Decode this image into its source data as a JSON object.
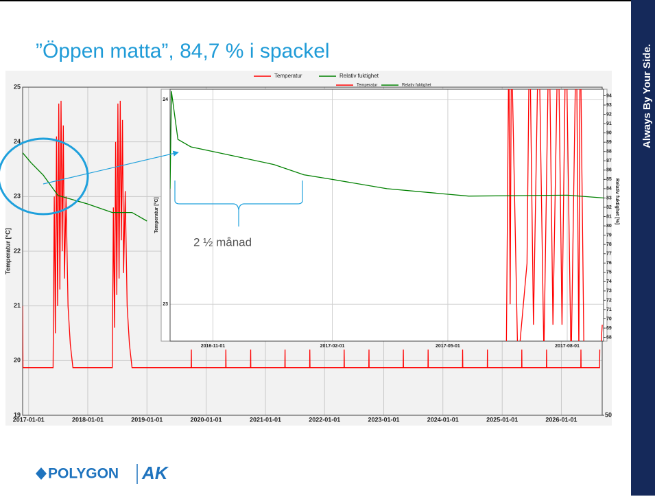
{
  "title": "”Öppen matta”, 84,7 % i spackel",
  "annotation": "2 ½ månad",
  "side_text": "Always By Your Side.",
  "logo": {
    "brand": "POLYGON",
    "partner": "AK"
  },
  "chart_data": [
    {
      "type": "line",
      "ylabel": "Temperatur [°C]",
      "xlim": [
        "2016-11-25",
        "2026-09-10"
      ],
      "xticks": [
        "2017-01-01",
        "2018-01-01",
        "2019-01-01",
        "2020-01-01",
        "2021-01-01",
        "2022-01-01",
        "2023-01-01",
        "2024-01-01",
        "2025-01-01",
        "2026-01-01"
      ],
      "ylim": [
        19,
        25
      ],
      "yticks": [
        19,
        20,
        21,
        22,
        23,
        24,
        25
      ],
      "y2lim": [
        50,
        100
      ],
      "y2ticks": [
        50
      ],
      "grid": true,
      "series": [
        {
          "name": "Temperatur",
          "color": "#ff0000",
          "x": [
            "2016-11-25",
            "2016-11-27",
            "2017-06-01",
            "2017-06-08",
            "2017-06-15",
            "2017-06-22",
            "2017-06-29",
            "2017-07-06",
            "2017-07-13",
            "2017-07-20",
            "2017-07-27",
            "2017-08-03",
            "2017-08-10",
            "2017-08-20",
            "2017-09-01",
            "2017-09-15",
            "2017-10-01",
            "2018-06-01",
            "2018-06-08",
            "2018-06-15",
            "2018-06-22",
            "2018-06-29",
            "2018-07-06",
            "2018-07-13",
            "2018-07-20",
            "2018-07-27",
            "2018-08-03",
            "2018-08-10",
            "2018-08-20",
            "2018-09-01",
            "2018-09-15",
            "2018-10-01",
            "2019-10-01",
            "2019-10-02",
            "2019-10-03",
            "2020-05-01",
            "2020-05-02",
            "2020-05-03",
            "2020-10-01",
            "2020-10-02",
            "2020-10-03",
            "2021-05-01",
            "2021-05-02",
            "2021-05-03",
            "2021-10-01",
            "2021-10-02",
            "2021-10-03",
            "2022-05-01",
            "2022-05-02",
            "2022-05-03",
            "2022-10-01",
            "2022-10-02",
            "2022-10-03",
            "2023-05-01",
            "2023-05-02",
            "2023-05-03",
            "2023-10-01",
            "2023-10-02",
            "2023-10-03",
            "2024-05-01",
            "2024-05-02",
            "2024-05-03",
            "2024-10-01",
            "2024-10-02",
            "2024-10-03",
            "2025-05-01",
            "2025-05-02",
            "2025-05-03",
            "2025-10-01",
            "2025-10-02",
            "2025-10-03",
            "2026-05-01",
            "2026-05-02",
            "2026-05-03",
            "2026-08-25",
            "2026-08-26"
          ],
          "values": [
            21.0,
            19.87,
            19.87,
            23.0,
            20.5,
            24.1,
            21.0,
            24.7,
            21.3,
            24.75,
            22.0,
            24.3,
            21.5,
            23.0,
            21.0,
            20.3,
            19.87,
            19.87,
            22.8,
            20.6,
            24.0,
            21.2,
            24.7,
            21.5,
            24.75,
            22.2,
            24.4,
            21.6,
            23.1,
            21.0,
            20.3,
            19.87,
            19.87,
            20.2,
            19.87,
            19.87,
            20.2,
            19.87,
            19.87,
            20.2,
            19.87,
            19.87,
            20.2,
            19.87,
            19.87,
            20.2,
            19.87,
            19.87,
            20.2,
            19.87,
            19.87,
            20.2,
            19.87,
            19.87,
            20.2,
            19.87,
            19.87,
            20.2,
            19.87,
            19.87,
            20.2,
            19.87,
            19.87,
            20.2,
            19.87,
            19.87,
            20.2,
            19.87,
            19.87,
            20.2,
            19.87,
            19.87,
            20.2,
            19.87,
            19.87,
            20.2
          ]
        },
        {
          "name": "Relativ fuktighet",
          "color": "#008000",
          "axis": "y2",
          "x": [
            "2016-11-25",
            "2017-01-15",
            "2017-04-01",
            "2017-07-01",
            "2018-01-01",
            "2018-06-01",
            "2018-10-01",
            "2019-01-01"
          ],
          "values": [
            90.0,
            88.5,
            86.6,
            83.5,
            82.2,
            80.9,
            80.9,
            79.6
          ]
        }
      ]
    },
    {
      "type": "line",
      "ylabel": "Temperatur [°C]",
      "y2label": "Relativ fuktighet [%]",
      "xlim": [
        "2016-09-29",
        "2017-08-29"
      ],
      "xticks": [
        "2016-11-01",
        "2017-02-01",
        "2017-05-01",
        "2017-08-01"
      ],
      "ylim": [
        22.82,
        24.05
      ],
      "yticks": [
        23,
        24
      ],
      "y2lim": [
        67.6,
        94.7
      ],
      "y2ticks": [
        68,
        69,
        70,
        71,
        72,
        73,
        74,
        75,
        76,
        77,
        78,
        79,
        80,
        81,
        82,
        83,
        84,
        85,
        86,
        87,
        88,
        89,
        90,
        91,
        92,
        93,
        94
      ],
      "grid": true,
      "series": [
        {
          "name": "Temperatur",
          "color": "#ff0000",
          "x": [
            "2017-06-15",
            "2017-06-17",
            "2017-06-18",
            "2017-06-19",
            "2017-06-24",
            "2017-07-01",
            "2017-07-03",
            "2017-07-06",
            "2017-07-10",
            "2017-07-14",
            "2017-07-18",
            "2017-07-21",
            "2017-07-25",
            "2017-07-28",
            "2017-07-31",
            "2017-08-04",
            "2017-08-08",
            "2017-08-10",
            "2017-08-11",
            "2017-08-14",
            "2017-08-26",
            "2017-08-28"
          ],
          "values": [
            22.7,
            24.3,
            23.0,
            24.3,
            22.7,
            23.2,
            24.4,
            22.9,
            24.4,
            22.75,
            24.4,
            22.9,
            24.4,
            22.9,
            24.4,
            22.7,
            24.4,
            22.75,
            24.4,
            22.7,
            22.7,
            22.9
          ]
        },
        {
          "name": "Relativ fuktighet",
          "color": "#008000",
          "axis": "y2",
          "x": [
            "2016-09-29",
            "2016-09-30",
            "2016-10-05",
            "2016-10-15",
            "2016-11-01",
            "2016-12-18",
            "2017-01-10",
            "2017-02-01",
            "2017-03-15",
            "2017-05-01",
            "2017-05-17",
            "2017-08-01",
            "2017-08-29"
          ],
          "values": [
            84.0,
            94.5,
            89.3,
            88.5,
            88.0,
            86.6,
            85.5,
            85.0,
            84.0,
            83.4,
            83.2,
            83.3,
            83.0
          ]
        }
      ]
    }
  ]
}
